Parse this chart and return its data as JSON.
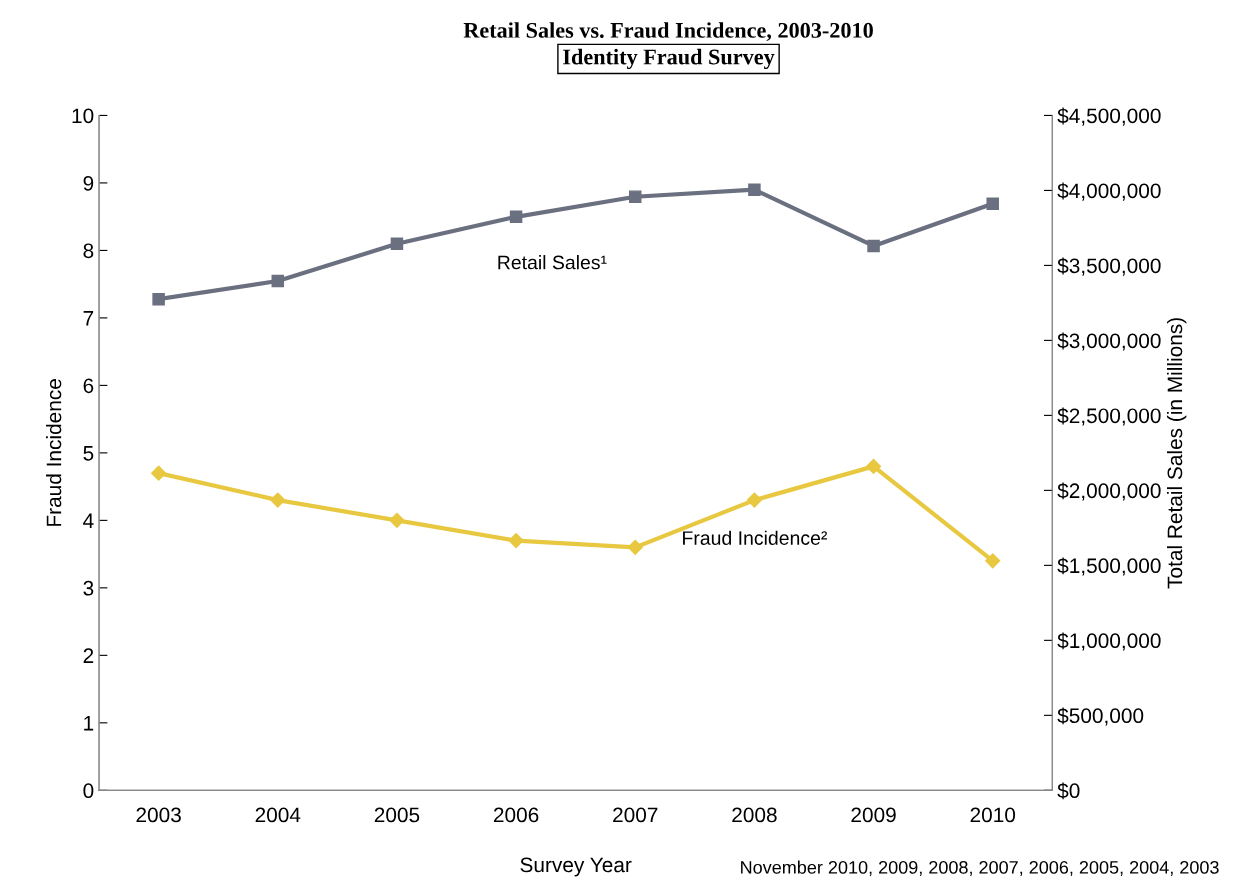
{
  "chart_data": {
    "type": "line",
    "title": "Retail Sales vs. Fraud Incidence, 2003-2010",
    "subtitle": "Identity Fraud Survey",
    "xlabel": "Survey Year",
    "ylabel": "Fraud Incidence",
    "y2label": "Total Retail Sales (in Millions)",
    "categories": [
      "2003",
      "2004",
      "2005",
      "2006",
      "2007",
      "2008",
      "2009",
      "2010"
    ],
    "series": [
      {
        "name": "Retail Sales¹",
        "color": "#6b7080",
        "marker": "square",
        "axis": "y2",
        "values": [
          3275000,
          3396000,
          3644000,
          3824000,
          3958000,
          4005000,
          3630000,
          3911000
        ]
      },
      {
        "name": "Fraud Incidence²",
        "color": "#e8c840",
        "marker": "diamond",
        "values": [
          4.7,
          4.3,
          4.0,
          3.7,
          3.6,
          4.3,
          4.8,
          3.4
        ]
      }
    ],
    "ylim": [
      0,
      10
    ],
    "yticks": [
      0,
      1,
      2,
      3,
      4,
      5,
      6,
      7,
      8,
      9,
      10
    ],
    "y2lim": [
      0,
      4500000
    ],
    "y2ticks": [
      {
        "value": 0,
        "label": "$0"
      },
      {
        "value": 500000,
        "label": "$500,000"
      },
      {
        "value": 1000000,
        "label": "$1,000,000"
      },
      {
        "value": 1500000,
        "label": "$1,500,000"
      },
      {
        "value": 2000000,
        "label": "$2,000,000"
      },
      {
        "value": 2500000,
        "label": "$2,500,000"
      },
      {
        "value": 3000000,
        "label": "$3,000,000"
      },
      {
        "value": 3500000,
        "label": "$3,500,000"
      },
      {
        "value": 4000000,
        "label": "$4,000,000"
      },
      {
        "value": 4500000,
        "label": "$4,500,000"
      }
    ],
    "grid": false,
    "legend": false,
    "line_style": "solid",
    "annotations": [
      "November 2010, 2009, 2008, 2007, 2006, 2005, 2004, 2003"
    ]
  }
}
